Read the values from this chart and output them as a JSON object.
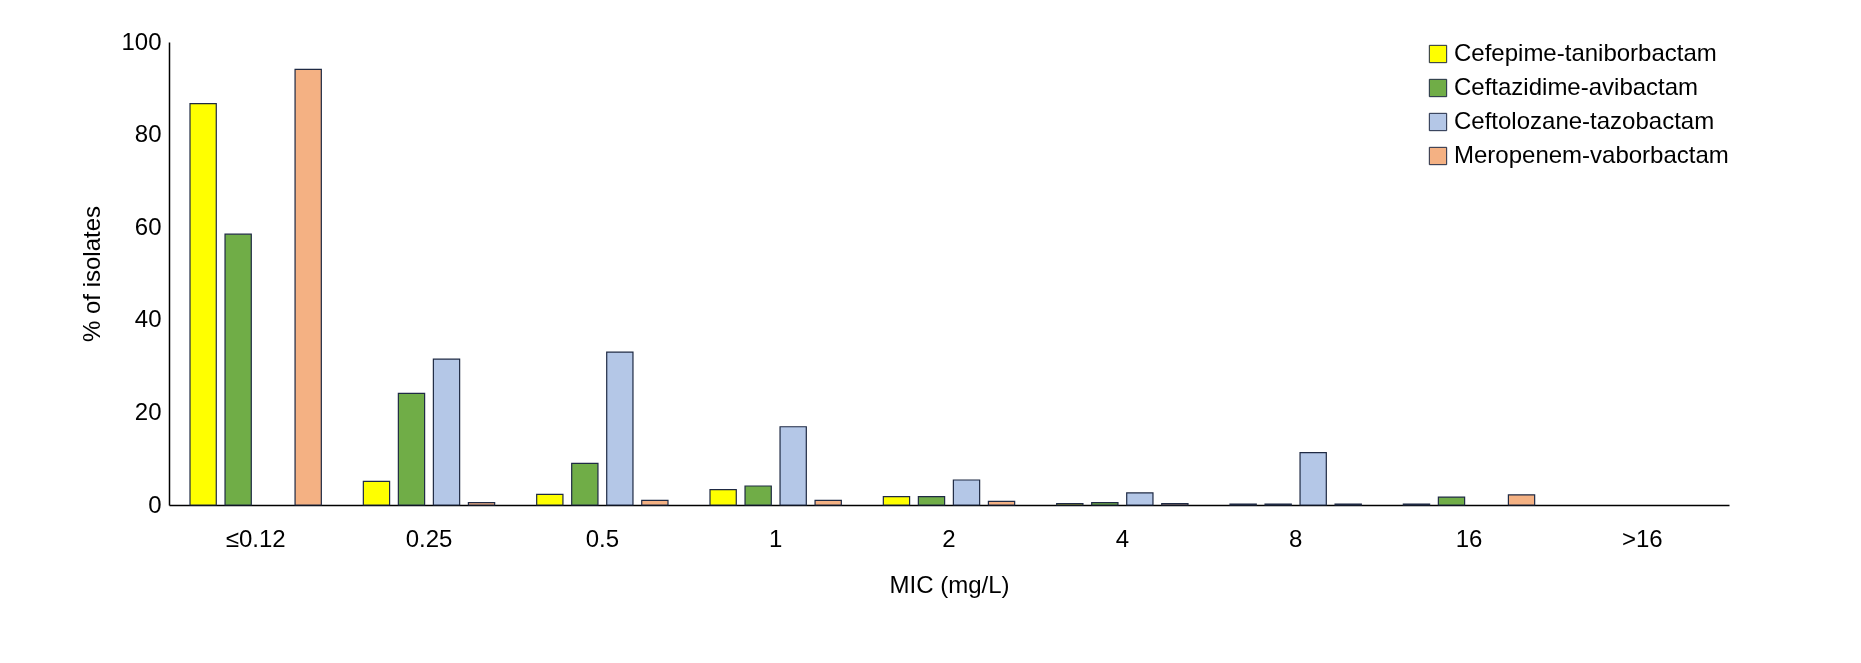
{
  "chart_data": {
    "type": "bar",
    "xlabel": "MIC (mg/L)",
    "ylabel": "% of isolates",
    "categories": [
      "≤0.12",
      "0.25",
      "0.5",
      "1",
      "2",
      "4",
      "8",
      "16",
      ">16"
    ],
    "series": [
      {
        "name": "Cefepime-taniborbactam",
        "color": "#ffff00",
        "values": [
          86.7,
          5.1,
          2.3,
          3.3,
          1.8,
          0.3,
          0.2,
          0.2,
          null
        ]
      },
      {
        "name": "Ceftazidime-avibactam",
        "color": "#70ad47",
        "values": [
          58.5,
          24.1,
          9,
          4.1,
          1.8,
          0.5,
          0.2,
          1.7,
          null
        ]
      },
      {
        "name": "Ceftolozane-tazobactam",
        "color": "#b4c7e7",
        "values": [
          null,
          31.5,
          33,
          16.9,
          5.4,
          2.6,
          11.3,
          null,
          null
        ]
      },
      {
        "name": "Meropenem-vaborbactam",
        "color": "#f4b183",
        "values": [
          94.1,
          0.5,
          1,
          1,
          0.8,
          0.3,
          0.2,
          2.2,
          null
        ]
      }
    ],
    "ylim": [
      0,
      100
    ],
    "yticks": [
      0,
      20,
      40,
      60,
      80,
      100
    ],
    "grid": false,
    "legend": "top right"
  }
}
